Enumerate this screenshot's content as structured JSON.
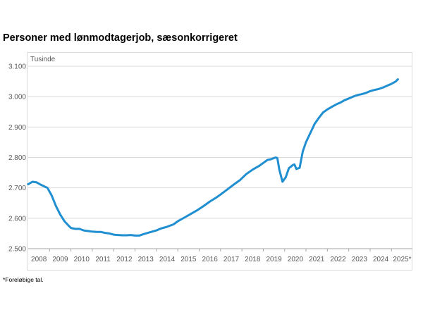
{
  "title": "Personer med lønmodtagerjob, sæsonkorrigeret",
  "footnote": "*Foreløbige tal.",
  "chart_data": {
    "type": "line",
    "unit_label": "Tusinde",
    "ylim": [
      2500,
      3100
    ],
    "yticks": [
      2500,
      2600,
      2700,
      2800,
      2900,
      3000,
      3100
    ],
    "ytick_labels": [
      "2.500",
      "2.600",
      "2.700",
      "2.800",
      "2.900",
      "3.000",
      "3.100"
    ],
    "xlim": [
      2008.0,
      2025.98
    ],
    "xtick_labels": [
      "2008",
      "2009",
      "2010",
      "2011",
      "2012",
      "2013",
      "2014",
      "2015",
      "2016",
      "2017",
      "2018",
      "2019",
      "2020",
      "2021",
      "2022",
      "2023",
      "2024",
      "2025*"
    ],
    "grid": "horizontal",
    "line_color": "#1f8fd2",
    "series": [
      {
        "x": [
          2008.0,
          2008.2,
          2008.4,
          2008.6,
          2008.9,
          2009.1,
          2009.3,
          2009.5,
          2009.7,
          2009.9,
          2010.0,
          2010.2,
          2010.4,
          2010.6,
          2010.8,
          2011.0,
          2011.2,
          2011.4,
          2011.6,
          2011.8,
          2012.0,
          2012.2,
          2012.4,
          2012.6,
          2012.8,
          2013.0,
          2013.2,
          2013.4,
          2013.6,
          2013.8,
          2014.0,
          2014.2,
          2014.5,
          2014.8,
          2015.0,
          2015.3,
          2015.6,
          2015.9,
          2016.2,
          2016.5,
          2016.8,
          2017.0,
          2017.3,
          2017.6,
          2017.9,
          2018.2,
          2018.5,
          2018.8,
          2019.0,
          2019.2,
          2019.35,
          2019.5,
          2019.58,
          2019.66,
          2019.75,
          2019.9,
          2020.05,
          2020.2,
          2020.3,
          2020.38,
          2020.46,
          2020.55,
          2020.7,
          2020.85,
          2021.0,
          2021.2,
          2021.4,
          2021.6,
          2021.8,
          2022.0,
          2022.2,
          2022.4,
          2022.6,
          2022.8,
          2023.0,
          2023.2,
          2023.4,
          2023.6,
          2023.8,
          2024.0,
          2024.2,
          2024.4,
          2024.6,
          2024.8,
          2025.0,
          2025.2,
          2025.3
        ],
        "y": [
          2712,
          2720,
          2718,
          2710,
          2700,
          2675,
          2640,
          2612,
          2590,
          2575,
          2568,
          2565,
          2565,
          2560,
          2558,
          2556,
          2555,
          2555,
          2552,
          2550,
          2546,
          2545,
          2544,
          2544,
          2545,
          2543,
          2543,
          2548,
          2552,
          2556,
          2560,
          2566,
          2572,
          2580,
          2590,
          2602,
          2614,
          2626,
          2640,
          2655,
          2668,
          2678,
          2694,
          2710,
          2725,
          2745,
          2760,
          2772,
          2782,
          2792,
          2794,
          2798,
          2800,
          2798,
          2760,
          2720,
          2735,
          2765,
          2770,
          2775,
          2777,
          2762,
          2766,
          2820,
          2850,
          2880,
          2910,
          2930,
          2948,
          2958,
          2966,
          2974,
          2980,
          2988,
          2994,
          3000,
          3005,
          3008,
          3012,
          3018,
          3022,
          3025,
          3030,
          3036,
          3042,
          3050,
          3057
        ]
      }
    ]
  }
}
